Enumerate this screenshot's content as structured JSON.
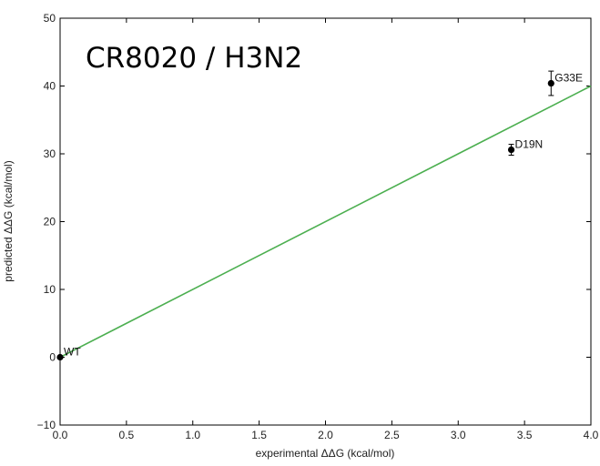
{
  "chart_data": {
    "type": "scatter",
    "title": "CR8020 / H3N2",
    "xlabel": "experimental ΔΔG (kcal/mol)",
    "ylabel": "predicted ΔΔG (kcal/mol)",
    "xlim": [
      0.0,
      4.0
    ],
    "ylim": [
      -10,
      50
    ],
    "xticks": [
      "0.0",
      "0.5",
      "1.0",
      "1.5",
      "2.0",
      "2.5",
      "3.0",
      "3.5",
      "4.0"
    ],
    "yticks": [
      "−10",
      "0",
      "10",
      "20",
      "30",
      "40",
      "50"
    ],
    "grid": false,
    "points": [
      {
        "label": "WT",
        "x": 0.0,
        "y": 0.0,
        "yerr": 0.0
      },
      {
        "label": "D19N",
        "x": 3.4,
        "y": 30.6,
        "yerr": 0.8
      },
      {
        "label": "G33E",
        "x": 3.7,
        "y": 40.4,
        "yerr": 1.8
      }
    ],
    "fit_line": {
      "x": [
        0.0,
        4.0
      ],
      "y": [
        0.0,
        40.0
      ],
      "color": "#4caf50"
    },
    "marker_color": "#000000"
  }
}
